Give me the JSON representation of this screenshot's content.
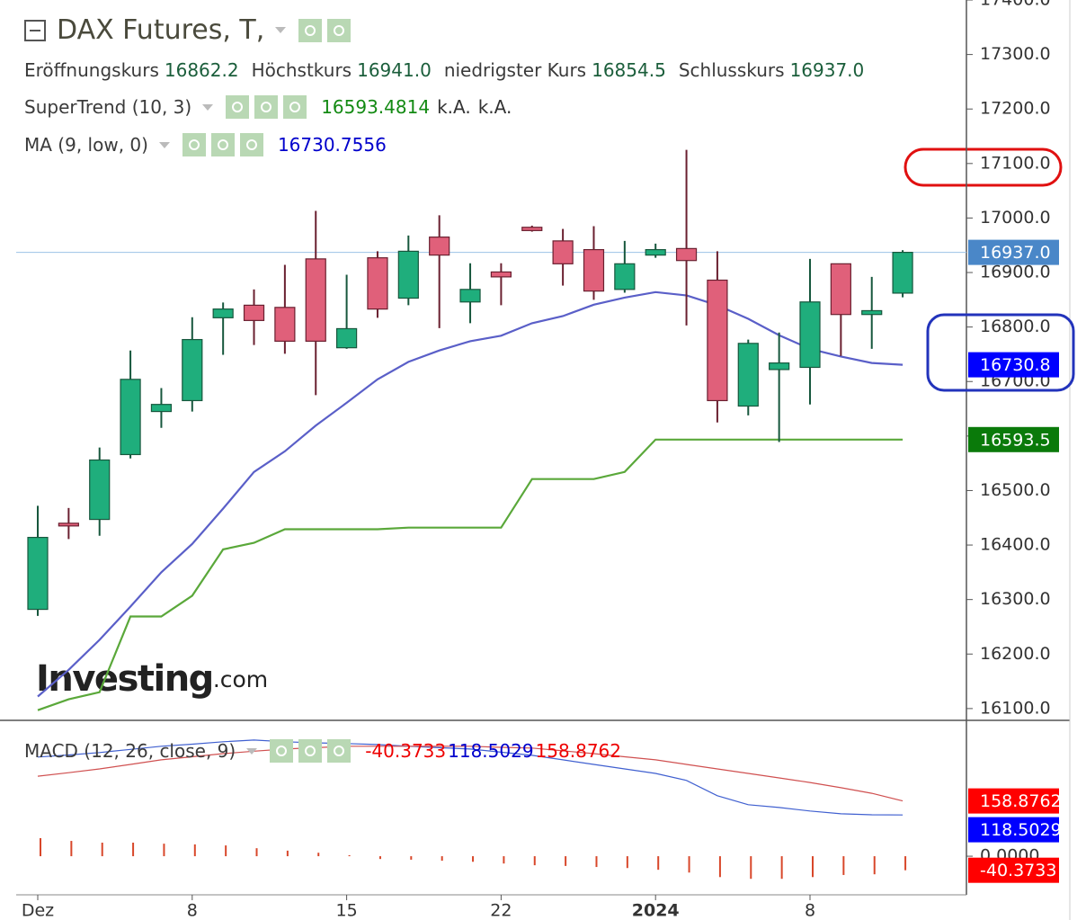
{
  "chart_data": [
    {
      "type": "candlestick",
      "title": "DAX Futures, T,",
      "ohlc_legend": [
        {
          "label": "Eröffnungskurs",
          "value": "16862.2"
        },
        {
          "label": "Höchstkurs",
          "value": "16941.0"
        },
        {
          "label": "niedrigster Kurs",
          "value": "16854.5"
        },
        {
          "label": "Schlusskurs",
          "value": "16937.0"
        }
      ],
      "watermark": {
        "brand": "Investing",
        "suffix": ".com"
      },
      "categories": [
        "Dez",
        null,
        null,
        null,
        null,
        "8",
        null,
        null,
        null,
        null,
        "15",
        null,
        null,
        null,
        null,
        "22",
        null,
        null,
        null,
        null,
        "2024",
        null,
        null,
        null,
        null,
        "8",
        null,
        null,
        null
      ],
      "open": [
        16282,
        16440,
        16447,
        16566,
        16645,
        16665,
        16817,
        16840,
        16836,
        16925,
        16762,
        16927,
        16853,
        16965,
        16846,
        16901,
        16983,
        16958,
        16942,
        16869,
        16932,
        16944,
        16886,
        16655,
        16722,
        16726,
        16916,
        16823,
        16862.2
      ],
      "high": [
        16472,
        16468,
        16579,
        16757,
        16688,
        16818,
        16845,
        16869,
        16914,
        17013,
        16896,
        16939,
        16968,
        17005,
        16917,
        16917,
        16986,
        16980,
        16985,
        16958,
        16953,
        17125,
        16939,
        16777,
        16790,
        16925,
        16916,
        16892,
        16941.0
      ],
      "low": [
        16270,
        16411,
        16417,
        16559,
        16615,
        16645,
        16749,
        16767,
        16751,
        16675,
        16760,
        16817,
        16840,
        16798,
        16807,
        16840,
        16975,
        16876,
        16850,
        16863,
        16927,
        16803,
        16625,
        16638,
        16589,
        16658,
        16747,
        16760,
        16854.5
      ],
      "close": [
        16414,
        16438,
        16556,
        16704,
        16658,
        16777,
        16833,
        16812,
        16774,
        16774,
        16797,
        16833,
        16939,
        16932,
        16869,
        16892,
        16977,
        16916,
        16866,
        16916,
        16942,
        16922,
        16665,
        16770,
        16734,
        16846,
        16823,
        16830,
        16937.0
      ],
      "up_color": "#1fae7c",
      "down_color": "#e0607a",
      "series": [
        {
          "name": "SuperTrend (10, 3)",
          "color": "#5aa83a",
          "legend_values": [
            {
              "text": "16593.4814",
              "color": "#138a13"
            },
            {
              "text": "k.A.",
              "color": "#333333"
            },
            {
              "text": "k.A.",
              "color": "#333333"
            }
          ],
          "values": [
            16097,
            16117,
            16130,
            16269,
            16269,
            16307,
            16392,
            16404,
            16429,
            16429,
            16429,
            16429,
            16432,
            16432,
            16432,
            16432,
            16521,
            16521,
            16521,
            16534,
            16593.4814,
            16593.4814,
            16593.4814,
            16593.4814,
            16593.4814,
            16593.4814,
            16593.4814,
            16593.4814,
            16593.4814
          ]
        },
        {
          "name": "MA (9, low, 0)",
          "color": "#5a5fc8",
          "legend_values": [
            {
              "text": "16730.7556",
              "color": "#0000cc"
            }
          ],
          "values": [
            16122,
            16171,
            16226,
            16287,
            16350,
            16402,
            16467,
            16534,
            16572,
            16619,
            16661,
            16704,
            16736,
            16757,
            16774,
            16784,
            16807,
            16820,
            16841,
            16854,
            16864,
            16858,
            16840,
            16815,
            16785,
            16760,
            16746,
            16734,
            16730.7556
          ]
        }
      ],
      "ylim": [
        16080,
        17400
      ],
      "yticks": [
        {
          "value": 16100,
          "label": "16100.0"
        },
        {
          "value": 16200,
          "label": "16200.0"
        },
        {
          "value": 16300,
          "label": "16300.0"
        },
        {
          "value": 16400,
          "label": "16400.0"
        },
        {
          "value": 16500,
          "label": "16500.0"
        },
        {
          "value": 16600,
          "label": "16600.0"
        },
        {
          "value": 16700,
          "label": "16700.0"
        },
        {
          "value": 16800,
          "label": "16800.0"
        },
        {
          "value": 16900,
          "label": "16900.0"
        },
        {
          "value": 17000,
          "label": "17000.0"
        },
        {
          "value": 17100,
          "label": "17100.0"
        },
        {
          "value": 17200,
          "label": "17200.0"
        },
        {
          "value": 17300,
          "label": "17300.0"
        },
        {
          "value": 17400,
          "label": "17400.0"
        }
      ],
      "grid": false,
      "markers": [
        {
          "value": 16937.0,
          "label": "16937.0",
          "color": "#4a87c8",
          "price_line": true
        },
        {
          "value": 16730.7556,
          "label": "16730.8",
          "color": "#0000ff"
        },
        {
          "value": 16593.4814,
          "label": "16593.5",
          "color": "#0a7a0a"
        }
      ]
    },
    {
      "type": "macd",
      "legend": "MACD (12, 26, close, 9)",
      "legend_values": [
        {
          "text": "-40.3733",
          "color": "#ee0000"
        },
        {
          "text": "118.5029",
          "color": "#0000cc"
        },
        {
          "text": "158.8762",
          "color": "#ee0000"
        }
      ],
      "series": [
        {
          "type": "line",
          "color": "#4060d0",
          "values": [
            285,
            291,
            298,
            307,
            316,
            322,
            329,
            334,
            329,
            326,
            324,
            321,
            316,
            312,
            308,
            299,
            290,
            277,
            264,
            251,
            238,
            218,
            174,
            148,
            140,
            130,
            122,
            119,
            118.5029
          ]
        },
        {
          "type": "line",
          "color": "#d05050",
          "values": [
            230,
            240,
            251,
            264,
            277,
            286,
            295,
            302,
            308,
            312,
            316,
            316,
            316,
            316,
            316,
            313,
            311,
            303,
            295,
            286,
            277,
            264,
            251,
            238,
            225,
            212,
            197,
            181,
            158.8762
          ]
        },
        {
          "type": "bar",
          "color": "#d8472a",
          "values": [
            52,
            44,
            39,
            39,
            36,
            34,
            31,
            23,
            16,
            10,
            3,
            -8,
            -10,
            -13,
            -16,
            -21,
            -26,
            -28,
            -31,
            -34,
            -39,
            -47,
            -60,
            -65,
            -65,
            -60,
            -54,
            -52,
            -40.3733
          ]
        }
      ],
      "ylim": [
        -111,
        388
      ],
      "yticks": [
        {
          "value": 0,
          "label": "0.0000"
        }
      ],
      "markers": [
        {
          "value": 158.8762,
          "label": "158.8762",
          "color": "#ff0000"
        },
        {
          "value": 118.5029,
          "label": "118.5029",
          "color": "#0000ff"
        },
        {
          "value": -40.3733,
          "label": "-40.3733",
          "color": "#ff0000"
        }
      ]
    }
  ]
}
